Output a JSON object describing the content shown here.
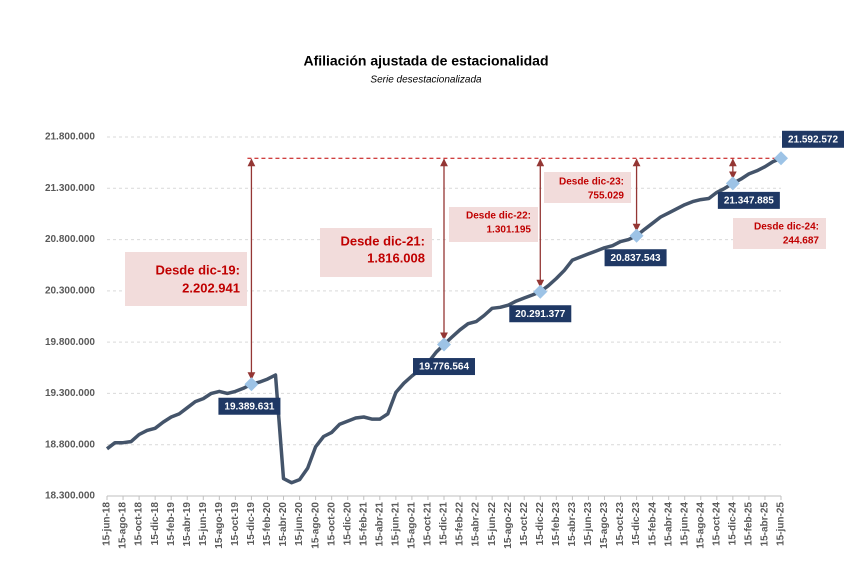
{
  "chart_data": {
    "type": "line",
    "title": "Afiliación ajustada de estacionalidad",
    "subtitle": "Serie desestacionalizada",
    "categories": [
      "15-jun-18",
      null,
      "15-ago-18",
      null,
      "15-oct-18",
      null,
      "15-dic-18",
      null,
      "15-feb-19",
      null,
      "15-abr-19",
      null,
      "15-jun-19",
      null,
      "15-ago-19",
      null,
      "15-oct-19",
      null,
      "15-dic-19",
      null,
      "15-feb-20",
      null,
      "15-abr-20",
      null,
      "15-jun-20",
      null,
      "15-ago-20",
      null,
      "15-oct-20",
      null,
      "15-dic-20",
      null,
      "15-feb-21",
      null,
      "15-abr-21",
      null,
      "15-jun-21",
      null,
      "15-ago-21",
      null,
      "15-oct-21",
      null,
      "15-dic-21",
      null,
      "15-feb-22",
      null,
      "15-abr-22",
      null,
      "15-jun-22",
      null,
      "15-ago-22",
      null,
      "15-oct-22",
      null,
      "15-dic-22",
      null,
      "15-feb-23",
      null,
      "15-abr-23",
      null,
      "15-jun-23",
      null,
      "15-ago-23",
      null,
      "15-oct-23",
      null,
      "15-dic-23",
      null,
      "15-feb-24",
      null,
      "15-abr-24",
      null,
      "15-jun-24",
      null,
      "15-ago-24",
      null,
      "15-oct-24",
      null,
      "15-dic-24",
      null,
      "15-feb-25",
      null,
      "15-abr-25",
      null,
      "15-jun-25"
    ],
    "values": [
      18760000,
      18820000,
      18820000,
      18830000,
      18900000,
      18940000,
      18960000,
      19020000,
      19070000,
      19100000,
      19160000,
      19220000,
      19250000,
      19300000,
      19320000,
      19300000,
      19320000,
      19350000,
      19389631,
      19410000,
      19440000,
      19480000,
      18470000,
      18430000,
      18460000,
      18570000,
      18780000,
      18880000,
      18920000,
      19000000,
      19030000,
      19060000,
      19070000,
      19050000,
      19050000,
      19100000,
      19310000,
      19400000,
      19470000,
      19530000,
      19600000,
      19700000,
      19776564,
      19850000,
      19920000,
      19980000,
      20000000,
      20060000,
      20130000,
      20140000,
      20160000,
      20200000,
      20230000,
      20260000,
      20291377,
      20350000,
      20420000,
      20500000,
      20600000,
      20630000,
      20660000,
      20690000,
      20720000,
      20740000,
      20780000,
      20800000,
      20837543,
      20900000,
      20960000,
      21020000,
      21060000,
      21100000,
      21140000,
      21170000,
      21190000,
      21200000,
      21260000,
      21300000,
      21347885,
      21390000,
      21440000,
      21470000,
      21510000,
      21560000,
      21592572
    ],
    "value_labels": [
      null,
      null,
      null,
      null,
      null,
      null,
      null,
      null,
      null,
      null,
      null,
      null,
      null,
      null,
      null,
      null,
      null,
      null,
      "19.389.631",
      null,
      null,
      null,
      null,
      null,
      null,
      null,
      null,
      null,
      null,
      null,
      null,
      null,
      null,
      null,
      null,
      null,
      null,
      null,
      null,
      null,
      null,
      null,
      "19.776.564",
      null,
      null,
      null,
      null,
      null,
      null,
      null,
      null,
      null,
      null,
      null,
      "20.291.377",
      null,
      null,
      null,
      null,
      null,
      null,
      null,
      null,
      null,
      null,
      null,
      "20.837.543",
      null,
      null,
      null,
      null,
      null,
      null,
      null,
      null,
      null,
      null,
      null,
      "21.347.885",
      null,
      null,
      null,
      null,
      null,
      "21.592.572"
    ],
    "color": "#44546a",
    "marker_color": "#9dc3e6",
    "ylim": [
      18300000,
      21800000
    ],
    "yticks": [
      {
        "value": 18300000,
        "label": "18.300.000"
      },
      {
        "value": 18800000,
        "label": "18.800.000"
      },
      {
        "value": 19300000,
        "label": "19.300.000"
      },
      {
        "value": 19800000,
        "label": "19.800.000"
      },
      {
        "value": 20300000,
        "label": "20.300.000"
      },
      {
        "value": 20800000,
        "label": "20.800.000"
      },
      {
        "value": 21300000,
        "label": "21.300.000"
      },
      {
        "value": 21800000,
        "label": "21.800.000"
      }
    ],
    "grid": true,
    "annotations": [
      {
        "text": "Desde dic-19:",
        "value": 2202941,
        "label": "2.202.941"
      },
      {
        "text": "Desde dic-21:",
        "value": 1816008,
        "label": "1.816.008"
      },
      {
        "text": "Desde dic-22:",
        "value": 1301195,
        "label": "1.301.195"
      },
      {
        "text": "Desde dic-23:",
        "value": 755029,
        "label": "755.029"
      },
      {
        "text": "Desde dic-24:",
        "value": 244687,
        "label": "244.687"
      }
    ]
  }
}
